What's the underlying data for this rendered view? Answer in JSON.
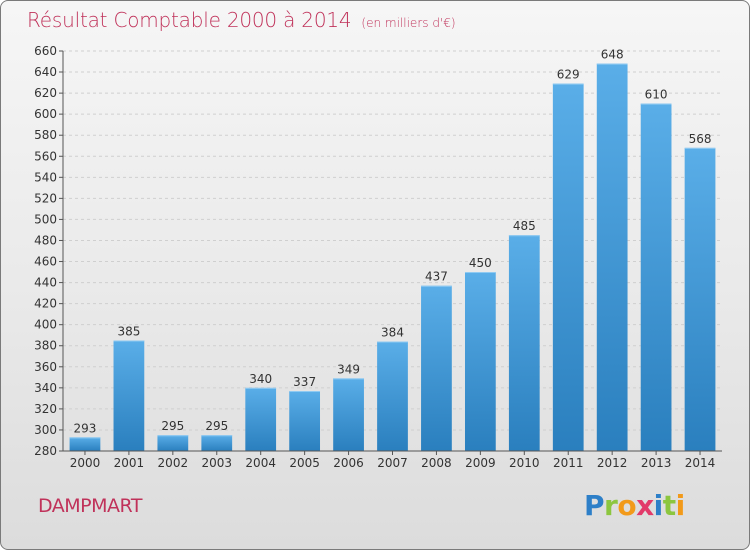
{
  "title": "Résultat Comptable 2000 à 2014",
  "subtitle": "(en milliers d'€)",
  "commune": "DAMPMART",
  "logo": {
    "letters": [
      "P",
      "r",
      "o",
      "x",
      "i",
      "t",
      "i"
    ],
    "colors": [
      "#2d7fc8",
      "#8cc63f",
      "#f29a1a",
      "#e23a6a",
      "#2d7fc8",
      "#8cc63f",
      "#f29a1a"
    ]
  },
  "colors": {
    "title": "#c0325a",
    "bar_light": "#5aaee8",
    "bar_dark": "#2a7fbe"
  },
  "chart_data": {
    "type": "bar",
    "title": "Résultat Comptable 2000 à 2014",
    "subtitle": "(en milliers d'€)",
    "categories": [
      "2000",
      "2001",
      "2002",
      "2003",
      "2004",
      "2005",
      "2006",
      "2007",
      "2008",
      "2009",
      "2010",
      "2011",
      "2012",
      "2013",
      "2014"
    ],
    "values": [
      293,
      385,
      295,
      295,
      340,
      337,
      349,
      384,
      437,
      450,
      485,
      629,
      648,
      610,
      568
    ],
    "ylim": [
      280,
      660
    ],
    "yticks": [
      280,
      300,
      320,
      340,
      360,
      380,
      400,
      420,
      440,
      460,
      480,
      500,
      520,
      540,
      560,
      580,
      600,
      620,
      640,
      660
    ],
    "grid": true,
    "legend": "none"
  }
}
